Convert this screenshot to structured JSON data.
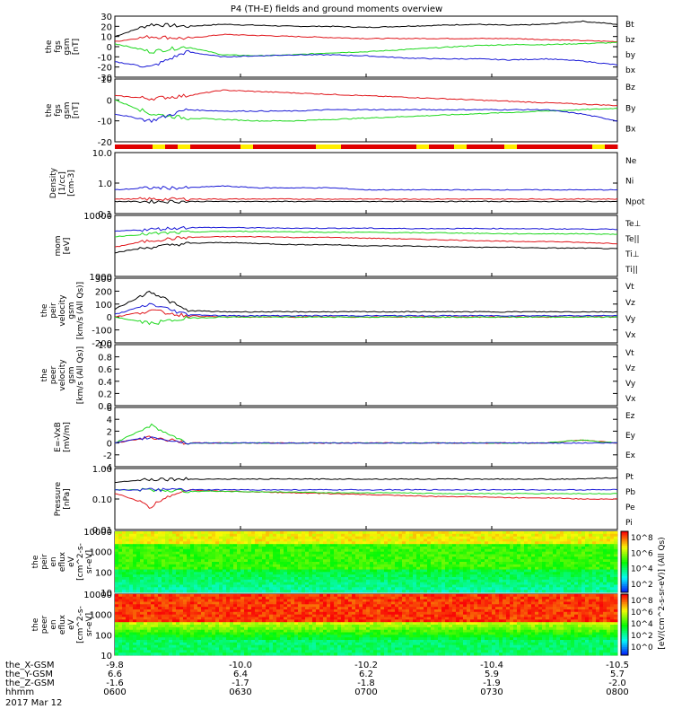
{
  "title": "P4 (TH-E) fields and ground moments overview",
  "date": "2017 Mar 12",
  "colors": {
    "black": "#000000",
    "red": "#e0161b",
    "green": "#1ed81e",
    "blue": "#1a1ad6"
  },
  "x_axis": {
    "rows": [
      {
        "label": "the_X-GSM",
        "values": [
          "-9.8",
          "-10.0",
          "-10.2",
          "-10.4",
          "-10.5"
        ]
      },
      {
        "label": "the_Y-GSM",
        "values": [
          "6.6",
          "6.4",
          "6.2",
          "5.9",
          "5.7"
        ]
      },
      {
        "label": "the_Z-GSM",
        "values": [
          "-1.6",
          "-1.7",
          "-1.8",
          "-1.9",
          "-2.0"
        ]
      },
      {
        "label": "hhmm",
        "values": [
          "0600",
          "0630",
          "0700",
          "0730",
          "0800"
        ]
      }
    ]
  },
  "colorbar": {
    "label": "[eV/(cm^2-s-sr-eV)] (All Qs)",
    "ticks_top": [
      "10^8",
      "10^6",
      "10^4",
      "10^2"
    ],
    "ticks_bottom": [
      "10^8",
      "10^6",
      "10^4",
      "10^2",
      "10^0"
    ]
  },
  "chart_data": [
    {
      "type": "line",
      "ylabel": [
        "the",
        "fgs",
        "gsm",
        "[nT]"
      ],
      "ylim": [
        -30,
        30
      ],
      "yticks": [
        "30",
        "20",
        "10",
        "0",
        "-10",
        "-20",
        "-30"
      ],
      "series": [
        {
          "name": "Bt",
          "color": "black",
          "values": [
            10,
            22,
            20,
            22,
            21,
            20,
            20,
            19,
            20,
            21,
            22,
            21,
            22,
            25,
            22
          ]
        },
        {
          "name": "bz",
          "color": "red",
          "values": [
            5,
            10,
            8,
            12,
            11,
            10,
            9,
            8,
            8,
            8,
            8,
            8,
            7,
            6,
            5
          ]
        },
        {
          "name": "by",
          "color": "green",
          "values": [
            3,
            -5,
            0,
            -8,
            -9,
            -8,
            -6,
            -5,
            -3,
            -1,
            1,
            2,
            2,
            3,
            4
          ]
        },
        {
          "name": "bx",
          "color": "blue",
          "values": [
            -15,
            -20,
            -5,
            -10,
            -9,
            -8,
            -8,
            -9,
            -11,
            -12,
            -12,
            -13,
            -12,
            -14,
            -18
          ]
        }
      ]
    },
    {
      "type": "line",
      "ylabel": [
        "the",
        "fgs",
        "gsm",
        "[nT]"
      ],
      "ylim": [
        -25,
        20
      ],
      "yticks": [
        "10",
        "0",
        "-10",
        "-20"
      ],
      "series": [
        {
          "name": "Bz",
          "color": "red",
          "values": [
            8,
            6,
            8,
            12,
            11,
            10,
            9,
            8,
            7,
            6,
            5,
            4,
            3,
            2,
            1
          ]
        },
        {
          "name": "By",
          "color": "green",
          "values": [
            5,
            -5,
            -8,
            -9,
            -10,
            -10,
            -9,
            -8,
            -7,
            -6,
            -5,
            -4,
            -3,
            -2,
            -1
          ]
        },
        {
          "name": "Bx",
          "color": "blue",
          "values": [
            -5,
            -10,
            -2,
            -3,
            -3,
            -3,
            -2,
            -2,
            -2,
            -2,
            -2,
            -2,
            -2,
            -5,
            -10
          ]
        }
      ]
    },
    {
      "type": "line",
      "ylabel": [
        "Density",
        "[1/cc]",
        "[cm-3]"
      ],
      "scale": "log",
      "ylim": [
        0.1,
        10
      ],
      "yticks": [
        "10.0",
        "1.0",
        "0.1"
      ],
      "series": [
        {
          "name": "Ne",
          "color": "red",
          "values": [
            0.3,
            0.3,
            0.3,
            0.3,
            0.3,
            0.3,
            0.3,
            0.3,
            0.3,
            0.3,
            0.3,
            0.3,
            0.3,
            0.3,
            0.3
          ]
        },
        {
          "name": "Ni",
          "color": "black",
          "values": [
            0.25,
            0.25,
            0.25,
            0.25,
            0.25,
            0.25,
            0.25,
            0.25,
            0.25,
            0.25,
            0.25,
            0.25,
            0.25,
            0.25,
            0.25
          ]
        },
        {
          "name": "Npot",
          "color": "blue",
          "values": [
            0.6,
            0.7,
            0.7,
            0.8,
            0.7,
            0.7,
            0.7,
            0.6,
            0.6,
            0.6,
            0.6,
            0.6,
            0.6,
            0.6,
            0.6
          ]
        }
      ]
    },
    {
      "type": "line",
      "ylabel": [
        "mom",
        "[eV]"
      ],
      "scale": "log",
      "ylim": [
        100,
        10000
      ],
      "yticks": [
        "10000",
        "1000"
      ],
      "series": [
        {
          "name": "Te⊥",
          "color": "red",
          "values": [
            900,
            1500,
            1900,
            2000,
            2000,
            1900,
            1900,
            1800,
            1700,
            1600,
            1500,
            1400,
            1400,
            1300,
            1200
          ]
        },
        {
          "name": "Te||",
          "color": "black",
          "values": [
            600,
            900,
            1200,
            1300,
            1200,
            1100,
            1100,
            1000,
            1000,
            950,
            900,
            900,
            850,
            850,
            800
          ]
        },
        {
          "name": "Ti⊥",
          "color": "blue",
          "values": [
            3000,
            3500,
            4000,
            4000,
            3900,
            3800,
            3800,
            3800,
            3700,
            3700,
            3700,
            3700,
            3600,
            3600,
            3500
          ]
        },
        {
          "name": "Ti||",
          "color": "green",
          "values": [
            2000,
            2500,
            2800,
            3000,
            3000,
            2900,
            2800,
            2800,
            2700,
            2700,
            2600,
            2500,
            2500,
            2500,
            2400
          ]
        }
      ]
    },
    {
      "type": "line",
      "ylabel": [
        "the",
        "peir",
        "velocity",
        "gsm",
        "[km/s (All Qs)]"
      ],
      "ylim": [
        -200,
        300
      ],
      "yticks": [
        "300",
        "200",
        "100",
        "0",
        "-100",
        "-200"
      ],
      "series": [
        {
          "name": "Vt",
          "color": "black",
          "values": [
            60,
            200,
            50,
            40,
            40,
            40,
            40,
            40,
            40,
            40,
            40,
            40,
            40,
            40,
            40
          ]
        },
        {
          "name": "Vz",
          "color": "red",
          "values": [
            0,
            50,
            10,
            0,
            0,
            0,
            0,
            0,
            0,
            0,
            0,
            0,
            0,
            0,
            0
          ]
        },
        {
          "name": "Vy",
          "color": "green",
          "values": [
            0,
            -50,
            -10,
            0,
            0,
            0,
            0,
            0,
            0,
            0,
            0,
            0,
            0,
            0,
            0
          ]
        },
        {
          "name": "Vx",
          "color": "blue",
          "values": [
            20,
            100,
            20,
            10,
            10,
            10,
            10,
            10,
            10,
            10,
            10,
            10,
            10,
            10,
            10
          ]
        }
      ]
    },
    {
      "type": "line",
      "ylabel": [
        "the",
        "peer",
        "velocity",
        "gsm",
        "[km/s (All Qs)]"
      ],
      "ylim": [
        0,
        1
      ],
      "yticks": [
        "1.0",
        "0.8",
        "0.6",
        "0.4",
        "0.2",
        "0.0"
      ],
      "series": [
        {
          "name": "Vt",
          "color": "black",
          "values": []
        },
        {
          "name": "Vz",
          "color": "red",
          "values": []
        },
        {
          "name": "Vy",
          "color": "green",
          "values": []
        },
        {
          "name": "Vx",
          "color": "blue",
          "values": []
        }
      ]
    },
    {
      "type": "line",
      "ylabel": [
        "E=-VxB",
        "[mV/m]"
      ],
      "ylim": [
        -4,
        6
      ],
      "yticks": [
        "6",
        "4",
        "2",
        "0",
        "-2",
        "-4"
      ],
      "series": [
        {
          "name": "Ez",
          "color": "red",
          "values": [
            0,
            1,
            0,
            0,
            0,
            0,
            0,
            0,
            0,
            0,
            0,
            0,
            0,
            0.5,
            0
          ]
        },
        {
          "name": "Ey",
          "color": "green",
          "values": [
            0,
            3,
            0,
            0,
            0,
            0,
            0,
            0,
            0,
            0,
            0,
            0,
            0,
            0.5,
            0
          ]
        },
        {
          "name": "Ex",
          "color": "blue",
          "values": [
            0,
            1,
            0,
            0,
            0,
            0,
            0,
            0,
            0,
            0,
            0,
            0,
            0,
            0,
            0
          ]
        }
      ]
    },
    {
      "type": "line",
      "ylabel": [
        "Pressure",
        "[nPa]"
      ],
      "scale": "log",
      "ylim": [
        0.01,
        1
      ],
      "yticks": [
        "1.00",
        "0.10",
        "0.01"
      ],
      "series": [
        {
          "name": "Pt",
          "color": "black",
          "values": [
            0.35,
            0.45,
            0.45,
            0.45,
            0.45,
            0.45,
            0.45,
            0.45,
            0.45,
            0.45,
            0.45,
            0.45,
            0.45,
            0.45,
            0.5
          ]
        },
        {
          "name": "Pb",
          "color": "red",
          "values": [
            0.15,
            0.05,
            0.2,
            0.18,
            0.17,
            0.16,
            0.15,
            0.14,
            0.13,
            0.12,
            0.12,
            0.11,
            0.11,
            0.1,
            0.1
          ]
        },
        {
          "name": "Pe",
          "color": "green",
          "values": [
            0.2,
            0.2,
            0.18,
            0.18,
            0.17,
            0.17,
            0.16,
            0.16,
            0.16,
            0.15,
            0.15,
            0.15,
            0.15,
            0.15,
            0.15
          ]
        },
        {
          "name": "Pi",
          "color": "blue",
          "values": [
            0.2,
            0.2,
            0.2,
            0.2,
            0.2,
            0.2,
            0.2,
            0.2,
            0.2,
            0.2,
            0.2,
            0.2,
            0.2,
            0.2,
            0.2
          ]
        }
      ]
    },
    {
      "type": "heatmap",
      "ylabel": [
        "the",
        "peir",
        "en",
        "eflux",
        "eV",
        "[cm^2-s-",
        "sr-eV]"
      ],
      "scale": "log",
      "yticks": [
        "10000",
        "1000",
        "100",
        "10"
      ]
    },
    {
      "type": "heatmap",
      "ylabel": [
        "the",
        "peer",
        "en",
        "eflux",
        "eV",
        "[cm^2-s-",
        "sr-eV]"
      ],
      "scale": "log",
      "yticks": [
        "10000",
        "1000",
        "100",
        "10"
      ]
    }
  ]
}
